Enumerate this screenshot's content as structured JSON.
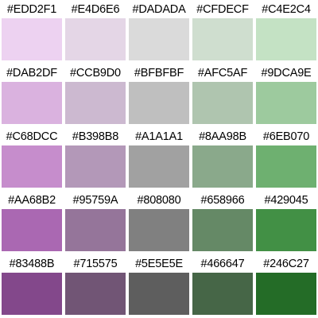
{
  "swatches": [
    [
      "#EDD2F1",
      "#E4D6E6",
      "#DADADA",
      "#CFDECF",
      "#C4E2C4"
    ],
    [
      "#DAB2DF",
      "#CCB9D0",
      "#BFBFBF",
      "#AFC5AF",
      "#9DCA9E"
    ],
    [
      "#C68DCC",
      "#B398B8",
      "#A1A1A1",
      "#8AA98B",
      "#6EB070"
    ],
    [
      "#AA68B2",
      "#95759A",
      "#808080",
      "#658966",
      "#429045"
    ],
    [
      "#83488B",
      "#715575",
      "#5E5E5E",
      "#466647",
      "#246C27"
    ]
  ]
}
